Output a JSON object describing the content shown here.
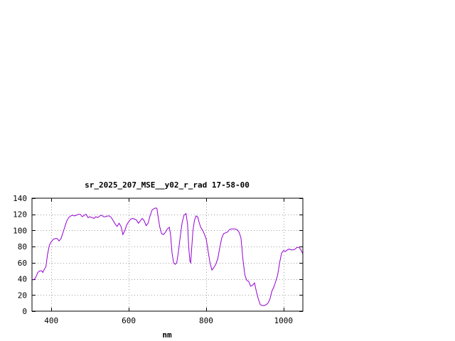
{
  "chart_data": {
    "type": "line",
    "title": "sr_2025_207_MSE__y02_r_rad 17-58-00",
    "xlabel": "nm",
    "ylabel": "",
    "xlim": [
      350,
      1050
    ],
    "ylim": [
      0,
      140
    ],
    "xticks": [
      400,
      600,
      800,
      1000
    ],
    "yticks": [
      0,
      20,
      40,
      60,
      80,
      100,
      120,
      140
    ],
    "grid": true,
    "line_color": "#9400d3",
    "series": [
      {
        "points": [
          [
            350,
            39
          ],
          [
            355,
            39
          ],
          [
            360,
            42
          ],
          [
            365,
            48
          ],
          [
            370,
            50
          ],
          [
            375,
            50
          ],
          [
            378,
            48
          ],
          [
            382,
            52
          ],
          [
            386,
            55
          ],
          [
            390,
            70
          ],
          [
            395,
            82
          ],
          [
            400,
            86
          ],
          [
            405,
            89
          ],
          [
            410,
            90
          ],
          [
            415,
            90
          ],
          [
            420,
            87
          ],
          [
            425,
            90
          ],
          [
            430,
            97
          ],
          [
            435,
            105
          ],
          [
            440,
            112
          ],
          [
            445,
            116
          ],
          [
            450,
            118
          ],
          [
            455,
            119
          ],
          [
            460,
            118
          ],
          [
            465,
            119
          ],
          [
            470,
            120
          ],
          [
            475,
            120
          ],
          [
            480,
            117
          ],
          [
            485,
            119
          ],
          [
            490,
            120
          ],
          [
            495,
            116
          ],
          [
            500,
            117
          ],
          [
            505,
            116
          ],
          [
            510,
            115
          ],
          [
            515,
            117
          ],
          [
            520,
            116
          ],
          [
            525,
            118
          ],
          [
            530,
            119
          ],
          [
            535,
            117
          ],
          [
            540,
            117
          ],
          [
            545,
            118
          ],
          [
            550,
            118
          ],
          [
            555,
            116
          ],
          [
            560,
            112
          ],
          [
            565,
            108
          ],
          [
            570,
            105
          ],
          [
            575,
            109
          ],
          [
            580,
            105
          ],
          [
            585,
            95
          ],
          [
            590,
            100
          ],
          [
            595,
            107
          ],
          [
            600,
            111
          ],
          [
            605,
            114
          ],
          [
            610,
            115
          ],
          [
            615,
            114
          ],
          [
            620,
            113
          ],
          [
            625,
            109
          ],
          [
            630,
            112
          ],
          [
            635,
            115
          ],
          [
            640,
            112
          ],
          [
            645,
            106
          ],
          [
            650,
            109
          ],
          [
            655,
            118
          ],
          [
            660,
            125
          ],
          [
            665,
            127
          ],
          [
            670,
            128
          ],
          [
            673,
            127
          ],
          [
            675,
            120
          ],
          [
            680,
            105
          ],
          [
            685,
            96
          ],
          [
            690,
            95
          ],
          [
            695,
            98
          ],
          [
            700,
            102
          ],
          [
            705,
            104
          ],
          [
            708,
            95
          ],
          [
            712,
            72
          ],
          [
            716,
            60
          ],
          [
            720,
            58
          ],
          [
            724,
            60
          ],
          [
            728,
            72
          ],
          [
            733,
            92
          ],
          [
            738,
            110
          ],
          [
            743,
            119
          ],
          [
            748,
            121
          ],
          [
            752,
            108
          ],
          [
            755,
            80
          ],
          [
            758,
            62
          ],
          [
            760,
            60
          ],
          [
            763,
            80
          ],
          [
            766,
            100
          ],
          [
            770,
            113
          ],
          [
            774,
            118
          ],
          [
            778,
            117
          ],
          [
            782,
            110
          ],
          [
            786,
            104
          ],
          [
            790,
            101
          ],
          [
            794,
            97
          ],
          [
            800,
            90
          ],
          [
            805,
            75
          ],
          [
            810,
            60
          ],
          [
            815,
            51
          ],
          [
            820,
            54
          ],
          [
            825,
            58
          ],
          [
            830,
            65
          ],
          [
            835,
            78
          ],
          [
            840,
            90
          ],
          [
            845,
            96
          ],
          [
            850,
            97
          ],
          [
            855,
            98
          ],
          [
            860,
            101
          ],
          [
            865,
            102
          ],
          [
            870,
            102
          ],
          [
            875,
            102
          ],
          [
            880,
            101
          ],
          [
            885,
            98
          ],
          [
            890,
            91
          ],
          [
            895,
            65
          ],
          [
            900,
            45
          ],
          [
            905,
            38
          ],
          [
            910,
            37
          ],
          [
            915,
            31
          ],
          [
            920,
            32
          ],
          [
            925,
            35
          ],
          [
            930,
            24
          ],
          [
            935,
            15
          ],
          [
            940,
            8
          ],
          [
            945,
            7
          ],
          [
            950,
            7
          ],
          [
            955,
            8
          ],
          [
            960,
            10
          ],
          [
            965,
            15
          ],
          [
            970,
            25
          ],
          [
            975,
            30
          ],
          [
            980,
            37
          ],
          [
            985,
            45
          ],
          [
            990,
            60
          ],
          [
            995,
            72
          ],
          [
            1000,
            75
          ],
          [
            1005,
            74
          ],
          [
            1010,
            76
          ],
          [
            1015,
            77
          ],
          [
            1020,
            76
          ],
          [
            1025,
            76
          ],
          [
            1030,
            77
          ],
          [
            1035,
            79
          ],
          [
            1040,
            79
          ],
          [
            1045,
            76
          ],
          [
            1050,
            71
          ]
        ]
      }
    ]
  }
}
